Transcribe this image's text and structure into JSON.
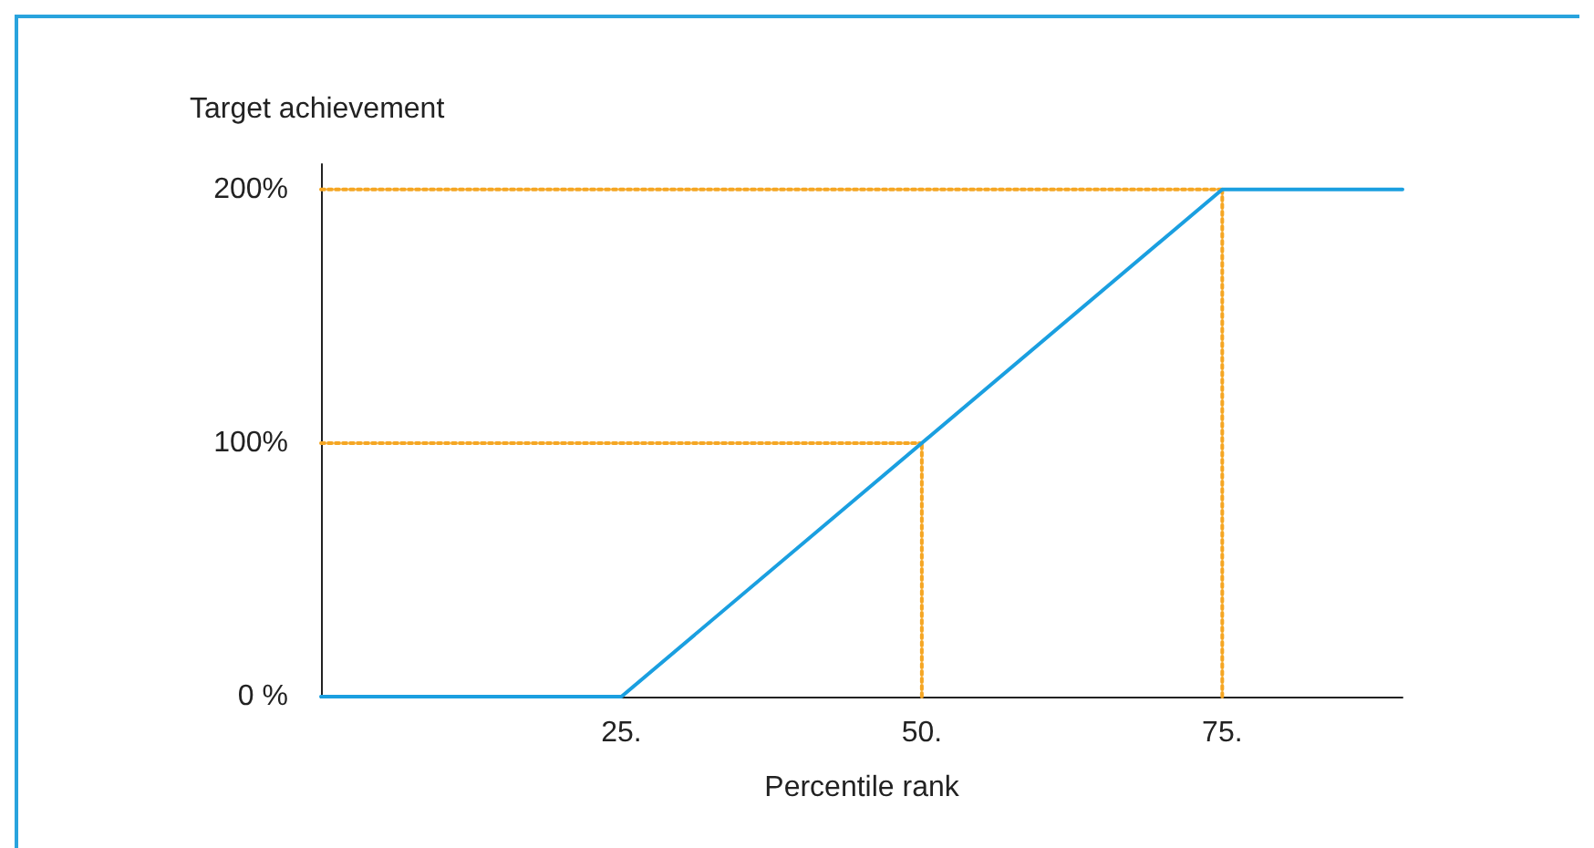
{
  "chart_data": {
    "type": "line",
    "ylabel": "Target achievement",
    "xlabel": "Percentile rank",
    "xlim": [
      0,
      90
    ],
    "xticks": [
      {
        "value": 25,
        "label": "25."
      },
      {
        "value": 50,
        "label": "50."
      },
      {
        "value": 75,
        "label": "75."
      }
    ],
    "ylim": [
      0,
      210
    ],
    "yticks": [
      {
        "value": 0,
        "label": "0 %"
      },
      {
        "value": 100,
        "label": "100%"
      },
      {
        "value": 200,
        "label": "200%"
      }
    ],
    "grid": false,
    "marker": "none",
    "series": [
      {
        "color": "#f5a623",
        "line_style": "dotted",
        "x": [
          0,
          50
        ],
        "values": [
          100,
          100
        ]
      },
      {
        "color": "#f5a623",
        "line_style": "dotted",
        "x": [
          50,
          50
        ],
        "values": [
          0,
          100
        ]
      },
      {
        "color": "#f5a623",
        "line_style": "dotted",
        "x": [
          0,
          75
        ],
        "values": [
          200,
          200
        ]
      },
      {
        "color": "#f5a623",
        "line_style": "dotted",
        "x": [
          75,
          75
        ],
        "values": [
          0,
          200
        ]
      },
      {
        "color": "#1a9fe0",
        "line_style": "solid",
        "x": [
          0,
          25,
          75,
          90
        ],
        "values": [
          0,
          0,
          200,
          200
        ]
      }
    ]
  }
}
